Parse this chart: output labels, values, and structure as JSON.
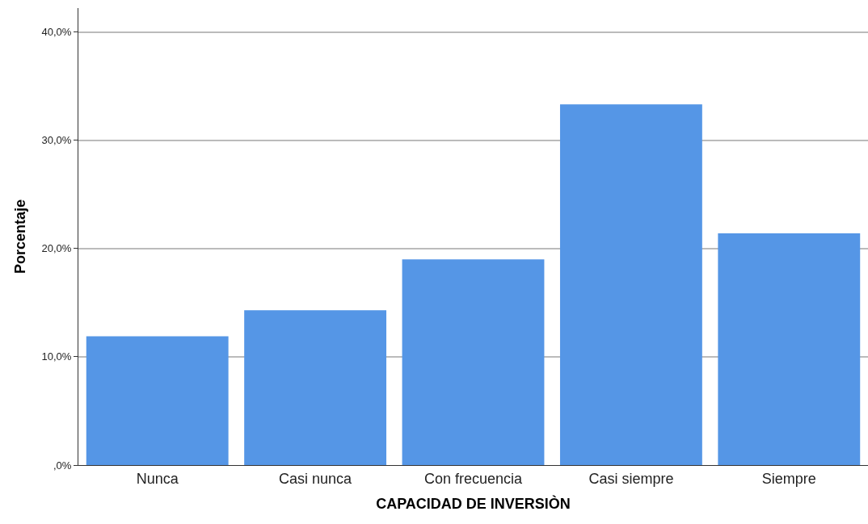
{
  "chart_data": {
    "type": "bar",
    "xlabel": "CAPACIDAD DE INVERSIÒN",
    "ylabel": "Porcentaje",
    "categories": [
      "Nunca",
      "Casi nunca",
      "Con frecuencia",
      "Casi siempre",
      "Siempre"
    ],
    "values": [
      11.9,
      14.3,
      19.0,
      33.3,
      21.4
    ],
    "color": "#5596e6",
    "ylim": [
      0,
      42.2
    ],
    "yticks": [
      {
        "value": 0,
        "label": ",0%"
      },
      {
        "value": 10,
        "label": "10,0%"
      },
      {
        "value": 20,
        "label": "20,0%"
      },
      {
        "value": 30,
        "label": "30,0%"
      },
      {
        "value": 40,
        "label": "40,0%"
      }
    ],
    "grid": "y"
  }
}
